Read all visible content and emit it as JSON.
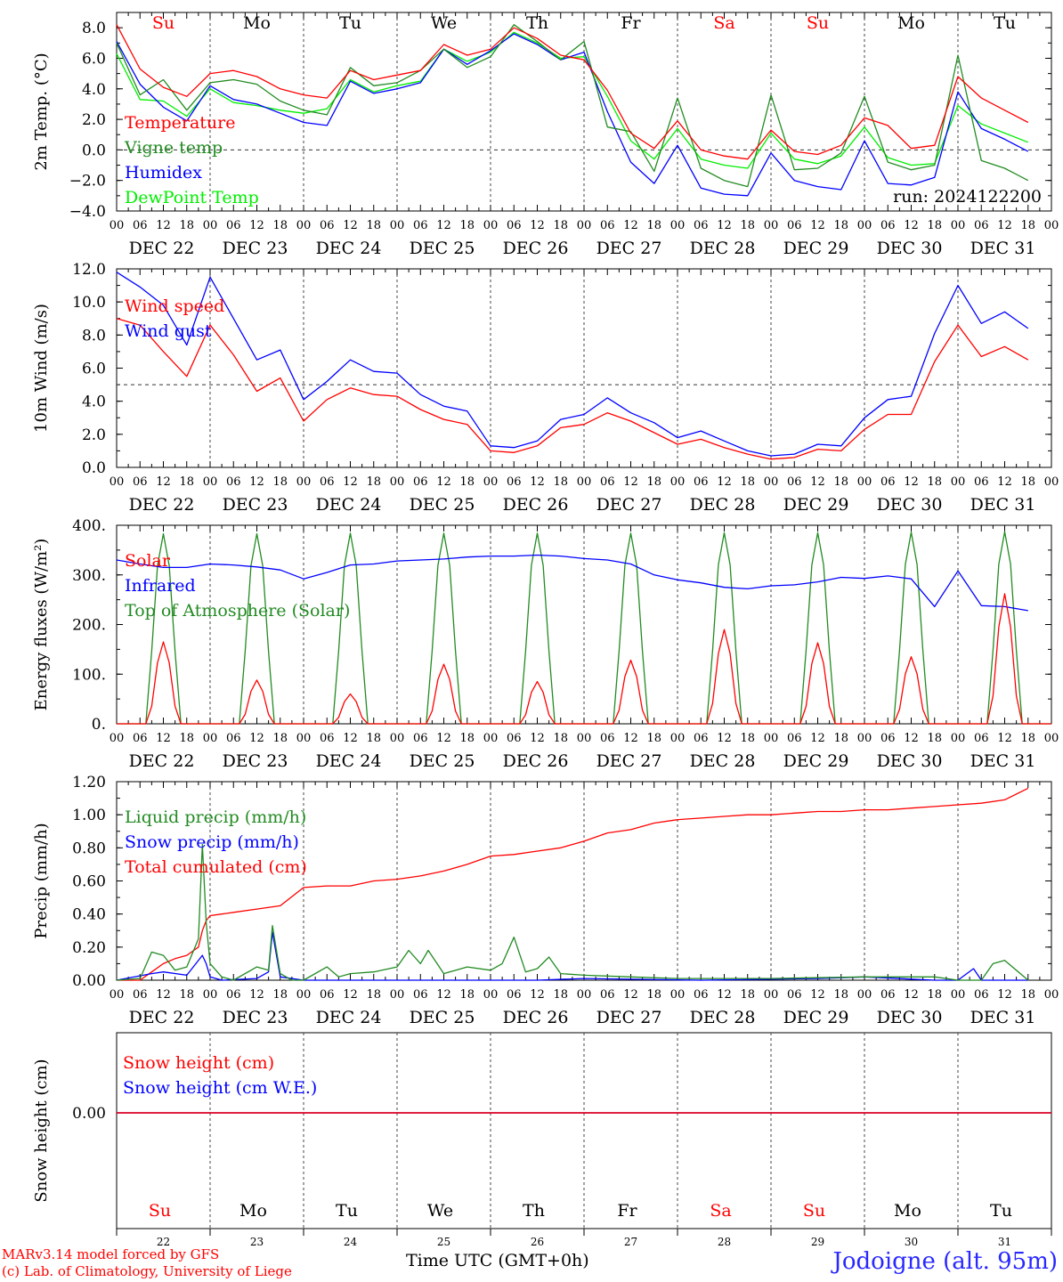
{
  "run_label": "run: 2024122200",
  "x_axis": {
    "hour_ticks": [
      "00",
      "06",
      "12",
      "18"
    ],
    "final_hour_tick": "00",
    "date_labels": [
      "DEC 22",
      "DEC 23",
      "DEC 24",
      "DEC 25",
      "DEC 26",
      "DEC 27",
      "DEC 28",
      "DEC 29",
      "DEC 30",
      "DEC 31"
    ],
    "days": [
      {
        "day": "Su",
        "num": "22",
        "color": "#ff0000"
      },
      {
        "day": "Mo",
        "num": "23",
        "color": "#000000"
      },
      {
        "day": "Tu",
        "num": "24",
        "color": "#000000"
      },
      {
        "day": "We",
        "num": "25",
        "color": "#000000"
      },
      {
        "day": "Th",
        "num": "26",
        "color": "#000000"
      },
      {
        "day": "Fr",
        "num": "27",
        "color": "#000000"
      },
      {
        "day": "Sa",
        "num": "28",
        "color": "#ff0000"
      },
      {
        "day": "Su",
        "num": "29",
        "color": "#ff0000"
      },
      {
        "day": "Mo",
        "num": "30",
        "color": "#000000"
      },
      {
        "day": "Tu",
        "num": "31",
        "color": "#000000"
      }
    ]
  },
  "footer": {
    "model_line": "MARv3.14 model forced by GFS",
    "credit_line": "(c) Lab. of Climatology, University of Liege",
    "time_label": "Time UTC (GMT+0h)",
    "station": "Jodoigne (alt. 95m)"
  },
  "chart_data": [
    {
      "type": "line",
      "ylabel": "2m Temp. (°C)",
      "ylim": [
        -4,
        9
      ],
      "yticks": [
        -4,
        -2,
        0,
        2,
        4,
        6,
        8
      ],
      "ytick_labels": [
        "−4.0",
        "−2.0",
        "0.0",
        "2.0",
        "4.0",
        "6.0",
        "8.0"
      ],
      "reference_line": 0,
      "x_hours": [
        0,
        6,
        12,
        18,
        24,
        30,
        36,
        42,
        48,
        54,
        60,
        66,
        72,
        78,
        84,
        90,
        96,
        102,
        108,
        114,
        120,
        126,
        132,
        138,
        144,
        150,
        156,
        162,
        168,
        174,
        180,
        186,
        192,
        198,
        204,
        210,
        216,
        222,
        228,
        234
      ],
      "series": [
        {
          "name": "Temperature",
          "color": "#ff0000",
          "values": [
            8.2,
            5.3,
            4.1,
            3.5,
            5.0,
            5.2,
            4.8,
            4.0,
            3.6,
            3.4,
            5.2,
            4.6,
            4.9,
            5.2,
            6.9,
            6.2,
            6.6,
            8.0,
            7.3,
            6.2,
            5.9,
            3.9,
            1.1,
            0.1,
            1.9,
            0.0,
            -0.4,
            -0.6,
            1.3,
            -0.1,
            -0.3,
            0.3,
            2.1,
            1.6,
            0.1,
            0.3,
            4.8,
            3.4,
            2.6,
            1.8
          ]
        },
        {
          "name": "Vigne temp",
          "color": "#228b22",
          "values": [
            7.0,
            3.6,
            4.6,
            2.6,
            4.4,
            4.6,
            4.3,
            3.2,
            2.6,
            2.3,
            5.4,
            4.2,
            4.4,
            5.2,
            6.6,
            5.4,
            6.1,
            8.2,
            7.1,
            5.9,
            7.1,
            1.5,
            1.2,
            -1.4,
            3.4,
            -1.2,
            -2.0,
            -2.4,
            3.6,
            -1.3,
            -1.2,
            -0.2,
            3.5,
            -0.8,
            -1.3,
            -1.0,
            6.2,
            -0.7,
            -1.2,
            -2.0
          ]
        },
        {
          "name": "Humidex",
          "color": "#0000ff",
          "values": [
            7.1,
            4.3,
            2.8,
            1.9,
            4.2,
            3.3,
            3.0,
            2.4,
            1.8,
            1.6,
            4.5,
            3.7,
            4.0,
            4.4,
            6.6,
            5.6,
            6.5,
            7.6,
            6.9,
            5.9,
            6.4,
            2.5,
            -0.8,
            -2.2,
            0.3,
            -2.5,
            -2.9,
            -3.0,
            -0.2,
            -2.0,
            -2.4,
            -2.6,
            0.6,
            -2.2,
            -2.3,
            -1.8,
            3.8,
            1.4,
            0.7,
            -0.1
          ]
        },
        {
          "name": "DewPoint Temp",
          "color": "#00ee00",
          "values": [
            6.3,
            3.3,
            3.2,
            2.2,
            4.0,
            3.1,
            2.9,
            2.6,
            2.4,
            2.7,
            4.6,
            3.8,
            4.2,
            4.5,
            6.6,
            5.8,
            6.4,
            7.7,
            7.0,
            6.0,
            6.1,
            3.5,
            0.6,
            -0.6,
            1.4,
            -0.6,
            -1.0,
            -1.2,
            1.1,
            -0.6,
            -0.9,
            -0.4,
            1.5,
            -0.5,
            -1.0,
            -0.9,
            2.9,
            1.7,
            1.1,
            0.5
          ]
        }
      ],
      "annotation": "run: 2024122200"
    },
    {
      "type": "line",
      "ylabel": "10m Wind (m/s)",
      "ylim": [
        0,
        12
      ],
      "yticks": [
        0,
        2,
        4,
        6,
        8,
        10,
        12
      ],
      "ytick_labels": [
        "0.0",
        "2.0",
        "4.0",
        "6.0",
        "8.0",
        "10.0",
        "12.0"
      ],
      "reference_line": 5,
      "x_hours": [
        0,
        6,
        12,
        18,
        24,
        30,
        36,
        42,
        48,
        54,
        60,
        66,
        72,
        78,
        84,
        90,
        96,
        102,
        108,
        114,
        120,
        126,
        132,
        138,
        144,
        150,
        156,
        162,
        168,
        174,
        180,
        186,
        192,
        198,
        204,
        210,
        216,
        222,
        228,
        234
      ],
      "series": [
        {
          "name": "Wind speed",
          "color": "#ff0000",
          "values": [
            9.0,
            8.6,
            7.0,
            5.5,
            8.6,
            6.8,
            4.6,
            5.4,
            2.8,
            4.1,
            4.8,
            4.4,
            4.3,
            3.5,
            2.9,
            2.6,
            1.0,
            0.9,
            1.3,
            2.4,
            2.6,
            3.3,
            2.8,
            2.1,
            1.4,
            1.7,
            1.2,
            0.8,
            0.5,
            0.6,
            1.1,
            1.0,
            2.3,
            3.2,
            3.2,
            6.4,
            8.6,
            6.7,
            7.3,
            6.5
          ]
        },
        {
          "name": "Wind gust",
          "color": "#0000ff",
          "values": [
            11.8,
            10.9,
            9.8,
            7.4,
            11.5,
            9.0,
            6.5,
            7.1,
            4.1,
            5.2,
            6.5,
            5.8,
            5.7,
            4.4,
            3.7,
            3.4,
            1.3,
            1.2,
            1.6,
            2.9,
            3.2,
            4.2,
            3.3,
            2.7,
            1.8,
            2.2,
            1.6,
            1.0,
            0.7,
            0.8,
            1.4,
            1.3,
            3.0,
            4.1,
            4.3,
            8.1,
            11.0,
            8.7,
            9.4,
            8.4
          ]
        }
      ]
    },
    {
      "type": "line",
      "ylabel": "Energy fluxes (W/m²)",
      "ylim": [
        0,
        400
      ],
      "yticks": [
        0,
        100,
        200,
        300,
        400
      ],
      "ytick_labels": [
        "0.",
        "100.",
        "200.",
        "300.",
        "400."
      ],
      "series": [
        {
          "name": "Solar",
          "color": "#ff0000",
          "daily_peak": [
            165,
            88,
            60,
            120,
            85,
            128,
            190,
            163,
            135,
            262
          ]
        },
        {
          "name": "Infrared",
          "color": "#0000ff",
          "x_hours": [
            0,
            6,
            12,
            18,
            24,
            30,
            36,
            42,
            48,
            54,
            60,
            66,
            72,
            78,
            84,
            90,
            96,
            102,
            108,
            114,
            120,
            126,
            132,
            138,
            144,
            150,
            156,
            162,
            168,
            174,
            180,
            186,
            192,
            198,
            204,
            210,
            216,
            222,
            228,
            234
          ],
          "values": [
            330,
            322,
            315,
            315,
            322,
            320,
            316,
            310,
            292,
            305,
            320,
            322,
            328,
            330,
            332,
            336,
            338,
            338,
            340,
            338,
            333,
            330,
            322,
            300,
            290,
            284,
            275,
            272,
            278,
            280,
            286,
            295,
            293,
            298,
            292,
            236,
            308,
            238,
            236,
            228
          ]
        },
        {
          "name": "Top of Atmosphere (Solar)",
          "color": "#228b22",
          "daily_peak": [
            383,
            383,
            384,
            384,
            384,
            384,
            385,
            385,
            386,
            387
          ]
        }
      ]
    },
    {
      "type": "line",
      "ylabel": "Precip (mm/h)",
      "ylim": [
        0,
        1.2
      ],
      "yticks": [
        0,
        0.2,
        0.4,
        0.6,
        0.8,
        1.0,
        1.2
      ],
      "ytick_labels": [
        "0.00",
        "0.20",
        "0.40",
        "0.60",
        "0.80",
        "1.00",
        "1.20"
      ],
      "series": [
        {
          "name": "Liquid precip (mm/h)",
          "color": "#228b22",
          "x_hours": [
            0,
            6,
            9,
            12,
            15,
            18,
            21,
            22,
            23,
            24,
            27,
            30,
            36,
            39,
            40,
            42,
            45,
            48,
            54,
            57,
            60,
            66,
            72,
            75,
            78,
            80,
            84,
            90,
            96,
            99,
            102,
            105,
            108,
            111,
            114,
            120,
            132,
            144,
            168,
            192,
            210,
            216,
            222,
            225,
            228,
            234
          ],
          "values": [
            0,
            0.01,
            0.17,
            0.15,
            0.06,
            0.08,
            0.25,
            0.82,
            0.35,
            0.1,
            0.02,
            0.0,
            0.08,
            0.06,
            0.33,
            0.04,
            0.0,
            0.0,
            0.08,
            0.02,
            0.04,
            0.05,
            0.08,
            0.18,
            0.1,
            0.18,
            0.04,
            0.08,
            0.06,
            0.1,
            0.26,
            0.05,
            0.07,
            0.14,
            0.04,
            0.03,
            0.02,
            0.01,
            0.01,
            0.02,
            0.02,
            0.0,
            0.0,
            0.1,
            0.12,
            0.0
          ]
        },
        {
          "name": "Snow precip (mm/h)",
          "color": "#0000ff",
          "x_hours": [
            0,
            9,
            12,
            18,
            22,
            23,
            24,
            27,
            36,
            39,
            40,
            42,
            48,
            60,
            84,
            96,
            108,
            120,
            150,
            180,
            192,
            210,
            216,
            220,
            222,
            234
          ],
          "values": [
            0,
            0.04,
            0.05,
            0.03,
            0.15,
            0.1,
            0.02,
            0.0,
            0.01,
            0.05,
            0.29,
            0.02,
            0.0,
            0.0,
            0.0,
            0.0,
            0.0,
            0.01,
            0.0,
            0.01,
            0.02,
            0.0,
            0.0,
            0.07,
            0.0,
            0.0
          ]
        },
        {
          "name": "Total cumulated (cm)",
          "color": "#ff0000",
          "x_hours": [
            0,
            6,
            9,
            12,
            15,
            18,
            21,
            22,
            23,
            24,
            27,
            30,
            36,
            42,
            48,
            54,
            60,
            66,
            72,
            78,
            84,
            90,
            96,
            102,
            108,
            114,
            120,
            126,
            132,
            138,
            144,
            150,
            156,
            162,
            168,
            174,
            180,
            186,
            192,
            198,
            204,
            210,
            216,
            222,
            228,
            234
          ],
          "values": [
            0,
            0.0,
            0.05,
            0.1,
            0.13,
            0.15,
            0.2,
            0.3,
            0.36,
            0.39,
            0.4,
            0.41,
            0.43,
            0.45,
            0.56,
            0.57,
            0.57,
            0.6,
            0.61,
            0.63,
            0.66,
            0.7,
            0.75,
            0.76,
            0.78,
            0.8,
            0.84,
            0.89,
            0.91,
            0.95,
            0.97,
            0.98,
            0.99,
            1.0,
            1.0,
            1.01,
            1.02,
            1.02,
            1.03,
            1.03,
            1.04,
            1.05,
            1.06,
            1.07,
            1.09,
            1.16
          ]
        }
      ]
    },
    {
      "type": "line",
      "ylabel": "Snow height (cm)",
      "yticks": [
        0
      ],
      "ytick_labels": [
        "0.00"
      ],
      "series": [
        {
          "name": "Snow height (cm)",
          "color": "#ff0000",
          "x_hours": [
            0,
            240
          ],
          "values": [
            0,
            0
          ]
        },
        {
          "name": "Snow height (cm W.E.)",
          "color": "#0000ff",
          "x_hours": [
            0,
            240
          ],
          "values": [
            0,
            0
          ]
        }
      ]
    }
  ]
}
